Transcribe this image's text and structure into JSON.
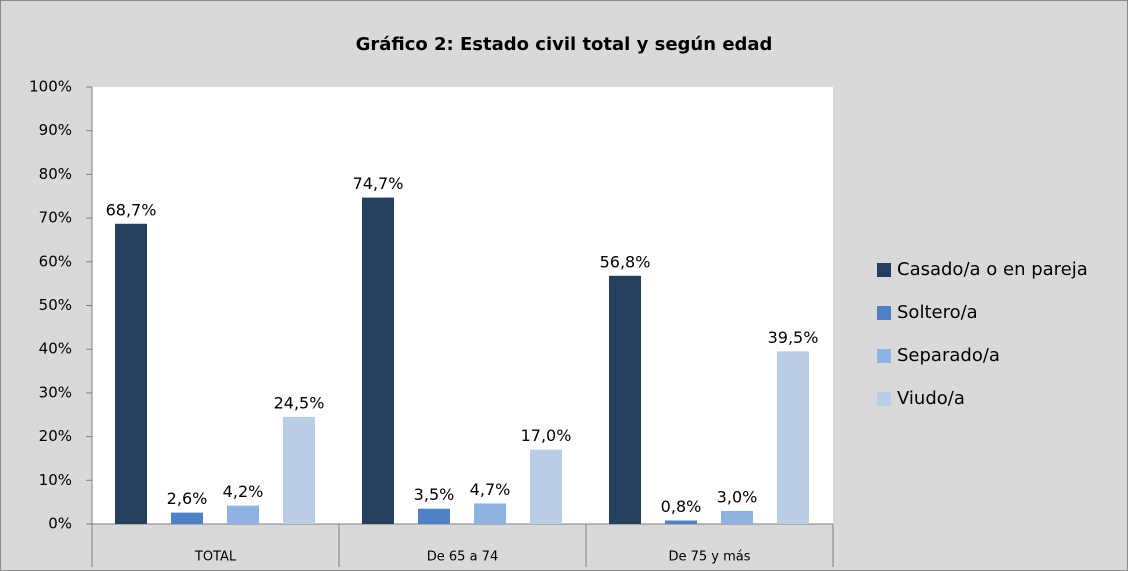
{
  "chart_data": {
    "type": "bar",
    "title": "Gráfico 2: Estado civil total y según edad",
    "categories": [
      "TOTAL",
      "De 65 a 74",
      "De 75 y más"
    ],
    "series": [
      {
        "name": "Casado/a o en pareja",
        "color": "#253f5f",
        "values": [
          68.7,
          74.7,
          56.8
        ],
        "value_labels": [
          "68,7%",
          "74,7%",
          "56,8%"
        ]
      },
      {
        "name": "Soltero/a",
        "color": "#4f81c7",
        "values": [
          2.6,
          3.5,
          0.8
        ],
        "value_labels": [
          "2,6%",
          "3,5%",
          "0,8%"
        ]
      },
      {
        "name": "Separado/a",
        "color": "#8db3e2",
        "values": [
          4.2,
          4.7,
          3.0
        ],
        "value_labels": [
          "4,2%",
          "4,7%",
          "3,0%"
        ]
      },
      {
        "name": "Viudo/a",
        "color": "#b9cde5",
        "values": [
          24.5,
          17.0,
          39.5
        ],
        "value_labels": [
          "24,5%",
          "17,0%",
          "39,5%"
        ]
      }
    ],
    "ylim": [
      0,
      100
    ],
    "yticks": [
      {
        "value": 0,
        "label": "0%"
      },
      {
        "value": 10,
        "label": "10%"
      },
      {
        "value": 20,
        "label": "20%"
      },
      {
        "value": 30,
        "label": "30%"
      },
      {
        "value": 40,
        "label": "40%"
      },
      {
        "value": 50,
        "label": "50%"
      },
      {
        "value": 60,
        "label": "60%"
      },
      {
        "value": 70,
        "label": "70%"
      },
      {
        "value": 80,
        "label": "80%"
      },
      {
        "value": 90,
        "label": "90%"
      },
      {
        "value": 100,
        "label": "100%"
      }
    ],
    "grid": false,
    "legend": "right"
  }
}
